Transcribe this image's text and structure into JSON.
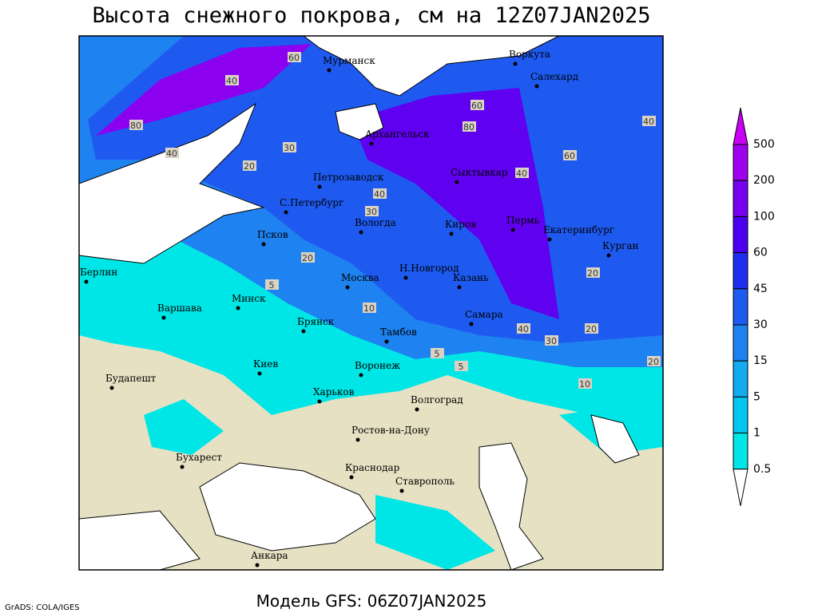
{
  "header": {
    "title": "Высота снежного покрова, см на 12Z07JAN2025"
  },
  "footer": {
    "model": "Модель GFS: 06Z07JAN2025",
    "credit": "GrADS: COLA/IGES"
  },
  "legend": {
    "levels": [
      500,
      200,
      100,
      60,
      45,
      30,
      15,
      5,
      1,
      0.5
    ],
    "colors": [
      "#c800f5",
      "#a000f0",
      "#7800f0",
      "#4b00f0",
      "#1e2df0",
      "#1e5af0",
      "#1e82f0",
      "#14aaf0",
      "#00c8f0",
      "#00e6e6",
      "#a0f5f5",
      "#ffffff"
    ]
  },
  "cities": [
    "Мурманск",
    "Воркута",
    "Салехард",
    "Архангельск",
    "Петрозаводск",
    "Сыктывкар",
    "С.Петербург",
    "Вологда",
    "Киров",
    "Пермь",
    "Екатеринбург",
    "Курган",
    "Псков",
    "Берлин",
    "Н.Новгород",
    "Москва",
    "Казань",
    "Минск",
    "Варшава",
    "Самара",
    "Брянск",
    "Тамбов",
    "Киев",
    "Воронеж",
    "Будапешт",
    "Харьков",
    "Волгоград",
    "Ростов-на-Дону",
    "Бухарест",
    "Краснодар",
    "Ставрополь",
    "Анкара"
  ],
  "contour_labels": [
    "60",
    "40",
    "80",
    "40",
    "30",
    "20",
    "40",
    "60",
    "80",
    "40",
    "60",
    "40",
    "30",
    "20",
    "10",
    "5",
    "5",
    "20",
    "40",
    "30",
    "20",
    "5",
    "10",
    "20"
  ]
}
